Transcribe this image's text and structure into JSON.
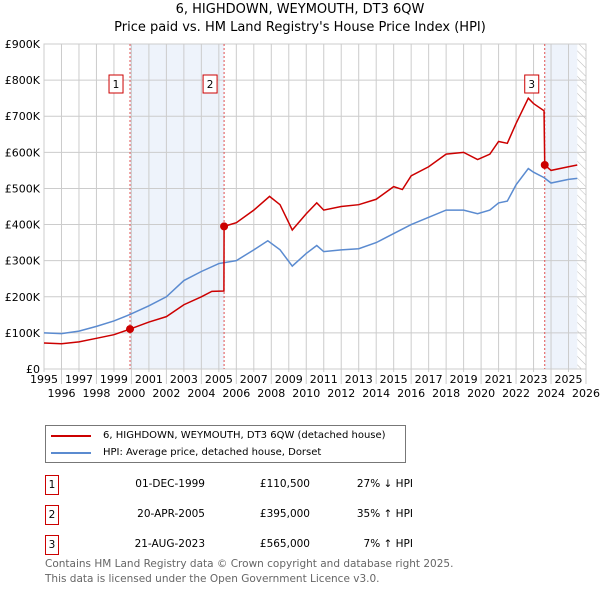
{
  "chart_data": {
    "type": "line",
    "title": "6, HIGHDOWN, WEYMOUTH, DT3 6QW",
    "subtitle": "Price paid vs. HM Land Registry's House Price Index (HPI)",
    "xlim": [
      1995,
      2026
    ],
    "ylim": [
      0,
      900000
    ],
    "x_ticks": [
      "1995",
      "1996",
      "1997",
      "1998",
      "1999",
      "2000",
      "2001",
      "2002",
      "2003",
      "2004",
      "2005",
      "2006",
      "2007",
      "2008",
      "2009",
      "2010",
      "2011",
      "2012",
      "2013",
      "2014",
      "2015",
      "2016",
      "2017",
      "2018",
      "2019",
      "2020",
      "2021",
      "2022",
      "2023",
      "2024",
      "2025",
      "2026"
    ],
    "y_ticks": [
      "£0",
      "£100K",
      "£200K",
      "£300K",
      "£400K",
      "£500K",
      "£600K",
      "£700K",
      "£800K",
      "£900K"
    ],
    "grid": true,
    "series": [
      {
        "name": "6, HIGHDOWN, WEYMOUTH, DT3 6QW (detached house)",
        "color": "#cc0000",
        "points": [
          [
            1995,
            72
          ],
          [
            1996,
            70
          ],
          [
            1997,
            75
          ],
          [
            1998,
            85
          ],
          [
            1999,
            95
          ],
          [
            1999.92,
            110.5
          ],
          [
            2001,
            130
          ],
          [
            2002,
            145
          ],
          [
            2003,
            178
          ],
          [
            2004,
            200
          ],
          [
            2004.6,
            215
          ],
          [
            2005.29,
            216
          ],
          [
            2005.3,
            395
          ],
          [
            2006,
            405
          ],
          [
            2007,
            440
          ],
          [
            2007.9,
            478
          ],
          [
            2008.5,
            455
          ],
          [
            2009.2,
            385
          ],
          [
            2010,
            430
          ],
          [
            2010.6,
            460
          ],
          [
            2011,
            440
          ],
          [
            2012,
            450
          ],
          [
            2013,
            455
          ],
          [
            2014,
            470
          ],
          [
            2015,
            505
          ],
          [
            2015.5,
            497
          ],
          [
            2016,
            535
          ],
          [
            2017,
            560
          ],
          [
            2018,
            595
          ],
          [
            2019,
            600
          ],
          [
            2019.8,
            580
          ],
          [
            2020.5,
            595
          ],
          [
            2021,
            630
          ],
          [
            2021.5,
            625
          ],
          [
            2022,
            680
          ],
          [
            2022.7,
            750
          ],
          [
            2023,
            735
          ],
          [
            2023.6,
            715
          ],
          [
            2023.64,
            565
          ],
          [
            2024,
            550
          ],
          [
            2025,
            560
          ],
          [
            2025.5,
            565
          ]
        ]
      },
      {
        "name": "HPI: Average price, detached house, Dorset",
        "color": "#5b8bd0",
        "points": [
          [
            1995,
            100
          ],
          [
            1996,
            98
          ],
          [
            1997,
            105
          ],
          [
            1998,
            118
          ],
          [
            1999,
            133
          ],
          [
            1999.92,
            151
          ],
          [
            2001,
            175
          ],
          [
            2002,
            200
          ],
          [
            2003,
            245
          ],
          [
            2004,
            270
          ],
          [
            2005,
            292
          ],
          [
            2006,
            300
          ],
          [
            2007,
            330
          ],
          [
            2007.8,
            355
          ],
          [
            2008.5,
            330
          ],
          [
            2009.2,
            285
          ],
          [
            2010,
            320
          ],
          [
            2010.6,
            342
          ],
          [
            2011,
            325
          ],
          [
            2012,
            330
          ],
          [
            2013,
            333
          ],
          [
            2014,
            350
          ],
          [
            2015,
            375
          ],
          [
            2016,
            400
          ],
          [
            2017,
            420
          ],
          [
            2018,
            440
          ],
          [
            2019,
            440
          ],
          [
            2019.8,
            430
          ],
          [
            2020.5,
            440
          ],
          [
            2021,
            460
          ],
          [
            2021.5,
            465
          ],
          [
            2022,
            510
          ],
          [
            2022.7,
            555
          ],
          [
            2023,
            545
          ],
          [
            2023.6,
            530
          ],
          [
            2024,
            515
          ],
          [
            2025,
            525
          ],
          [
            2025.5,
            528
          ]
        ]
      }
    ],
    "y_units": "thousands GBP",
    "sales": [
      {
        "label": "1",
        "x": 1999.92,
        "y": 110.5,
        "date": "01-DEC-1999",
        "price": "£110,500",
        "hpi": "27% ↓ HPI"
      },
      {
        "label": "2",
        "x": 2005.3,
        "y": 395,
        "date": "20-APR-2005",
        "price": "£395,000",
        "hpi": "35% ↑ HPI"
      },
      {
        "label": "3",
        "x": 2023.64,
        "y": 565,
        "date": "21-AUG-2023",
        "price": "£565,000",
        "hpi": "7% ↑ HPI"
      }
    ],
    "data_end": 2025.5
  },
  "footer": [
    "Contains HM Land Registry data © Crown copyright and database right 2025.",
    "This data is licensed under the Open Government Licence v3.0."
  ]
}
